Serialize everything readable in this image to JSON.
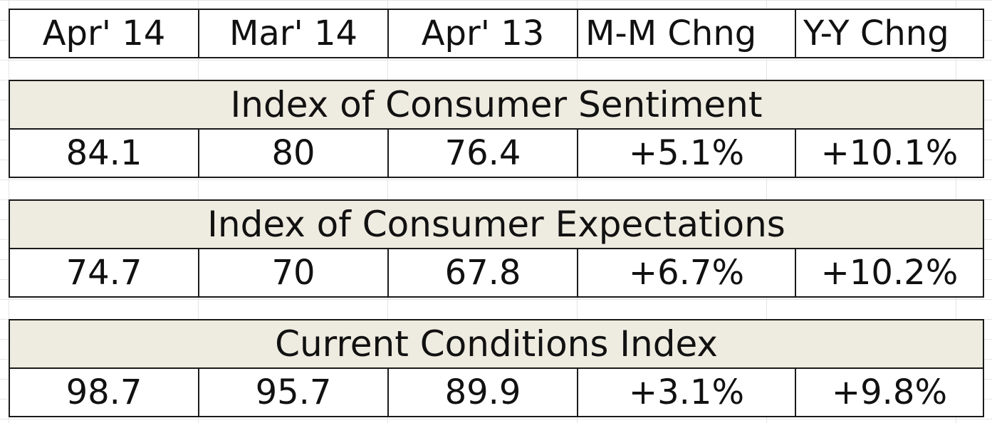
{
  "header": {
    "columns": [
      "Apr' 14",
      "Mar' 14",
      "Apr' 13",
      "M-M Chng",
      "Y-Y Chng"
    ]
  },
  "sections": [
    {
      "title": "Index of Consumer Sentiment",
      "values": [
        "84.1",
        "80",
        "76.4",
        "+5.1%",
        "+10.1%"
      ]
    },
    {
      "title": "Index of Consumer Expectations",
      "values": [
        "74.7",
        "70",
        "67.8",
        "+6.7%",
        "+10.2%"
      ]
    },
    {
      "title": "Current Conditions Index",
      "values": [
        "98.7",
        "95.7",
        "89.9",
        "+3.1%",
        "+9.8%"
      ]
    }
  ],
  "colors": {
    "section_fill": "#eeebe0",
    "border": "#1a1a1a",
    "gridline": "#d9d9d9"
  }
}
